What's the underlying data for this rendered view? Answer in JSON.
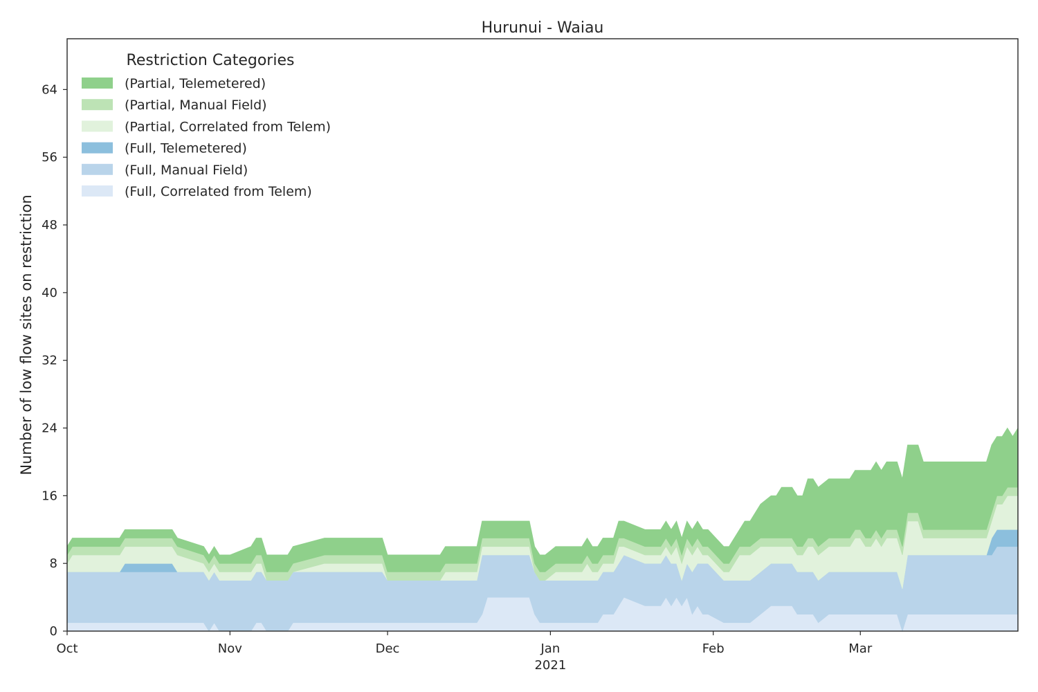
{
  "chart_data": {
    "type": "area",
    "stacked": true,
    "title": "Hurunui - Waiau",
    "ylabel": "Number of low flow sites on restriction",
    "xlabel": "",
    "x_range": [
      "2020-10-01",
      "2021-03-31"
    ],
    "ylim": [
      0,
      70
    ],
    "y_ticks": [
      0,
      8,
      16,
      24,
      32,
      40,
      48,
      56,
      64
    ],
    "x_ticks": [
      {
        "date": "2020-10-01",
        "label": "Oct",
        "sublabel": ""
      },
      {
        "date": "2020-11-01",
        "label": "Nov",
        "sublabel": ""
      },
      {
        "date": "2020-12-01",
        "label": "Dec",
        "sublabel": ""
      },
      {
        "date": "2021-01-01",
        "label": "Jan",
        "sublabel": "2021"
      },
      {
        "date": "2021-02-01",
        "label": "Feb",
        "sublabel": ""
      },
      {
        "date": "2021-03-01",
        "label": "Mar",
        "sublabel": ""
      }
    ],
    "grid": false,
    "legend": {
      "title": "Restriction Categories",
      "placement": "upper-left"
    },
    "dates": [
      "2020-10-01",
      "2020-10-02",
      "2020-10-11",
      "2020-10-12",
      "2020-10-21",
      "2020-10-22",
      "2020-10-27",
      "2020-10-28",
      "2020-10-29",
      "2020-10-30",
      "2020-11-01",
      "2020-11-05",
      "2020-11-06",
      "2020-11-07",
      "2020-11-08",
      "2020-11-09",
      "2020-11-10",
      "2020-11-12",
      "2020-11-13",
      "2020-11-19",
      "2020-11-20",
      "2020-11-21",
      "2020-11-22",
      "2020-11-24",
      "2020-11-25",
      "2020-11-29",
      "2020-11-30",
      "2020-12-01",
      "2020-12-04",
      "2020-12-05",
      "2020-12-06",
      "2020-12-07",
      "2020-12-08",
      "2020-12-09",
      "2020-12-10",
      "2020-12-11",
      "2020-12-12",
      "2020-12-13",
      "2020-12-14",
      "2020-12-15",
      "2020-12-16",
      "2020-12-17",
      "2020-12-18",
      "2020-12-19",
      "2020-12-20",
      "2020-12-21",
      "2020-12-22",
      "2020-12-24",
      "2020-12-25",
      "2020-12-26",
      "2020-12-27",
      "2020-12-28",
      "2020-12-29",
      "2020-12-30",
      "2020-12-31",
      "2021-01-02",
      "2021-01-04",
      "2021-01-05",
      "2021-01-06",
      "2021-01-07",
      "2021-01-08",
      "2021-01-09",
      "2021-01-10",
      "2021-01-11",
      "2021-01-12",
      "2021-01-13",
      "2021-01-14",
      "2021-01-15",
      "2021-01-19",
      "2021-01-20",
      "2021-01-21",
      "2021-01-22",
      "2021-01-23",
      "2021-01-24",
      "2021-01-25",
      "2021-01-26",
      "2021-01-27",
      "2021-01-28",
      "2021-01-29",
      "2021-01-30",
      "2021-01-31",
      "2021-02-03",
      "2021-02-04",
      "2021-02-05",
      "2021-02-06",
      "2021-02-07",
      "2021-02-08",
      "2021-02-10",
      "2021-02-12",
      "2021-02-13",
      "2021-02-14",
      "2021-02-15",
      "2021-02-16",
      "2021-02-17",
      "2021-02-18",
      "2021-02-19",
      "2021-02-20",
      "2021-02-21",
      "2021-02-23",
      "2021-02-24",
      "2021-02-25",
      "2021-02-26",
      "2021-02-27",
      "2021-02-28",
      "2021-03-01",
      "2021-03-02",
      "2021-03-03",
      "2021-03-04",
      "2021-03-05",
      "2021-03-06",
      "2021-03-07",
      "2021-03-08",
      "2021-03-09",
      "2021-03-10",
      "2021-03-11",
      "2021-03-12",
      "2021-03-13",
      "2021-03-14",
      "2021-03-15",
      "2021-03-16",
      "2021-03-17",
      "2021-03-18",
      "2021-03-19",
      "2021-03-20",
      "2021-03-22",
      "2021-03-23",
      "2021-03-24",
      "2021-03-25",
      "2021-03-26",
      "2021-03-27",
      "2021-03-28",
      "2021-03-29",
      "2021-03-30",
      "2021-03-31"
    ],
    "series": [
      {
        "name": "(Full, Correlated from Telem)",
        "color": "#dce8f6",
        "values": [
          1,
          1,
          1,
          1,
          1,
          1,
          1,
          0,
          1,
          0,
          0,
          0,
          1,
          1,
          0,
          0,
          0,
          0,
          1,
          1,
          1,
          1,
          1,
          1,
          1,
          1,
          1,
          1,
          1,
          1,
          1,
          1,
          1,
          1,
          1,
          1,
          1,
          1,
          1,
          1,
          1,
          1,
          1,
          2,
          4,
          4,
          4,
          4,
          4,
          4,
          4,
          4,
          2,
          1,
          1,
          1,
          1,
          1,
          1,
          1,
          1,
          1,
          1,
          2,
          2,
          2,
          3,
          4,
          3,
          3,
          3,
          3,
          4,
          3,
          4,
          3,
          4,
          2,
          3,
          2,
          2,
          1,
          1,
          1,
          1,
          1,
          1,
          2,
          3,
          3,
          3,
          3,
          3,
          2,
          2,
          2,
          2,
          1,
          2,
          2,
          2,
          2,
          2,
          2,
          2,
          2,
          2,
          2,
          2,
          2,
          2,
          2,
          0,
          2,
          2,
          2,
          2,
          2,
          2,
          2,
          2,
          2,
          2,
          2,
          2,
          2,
          2,
          2,
          2,
          2,
          2,
          2,
          2,
          2
        ]
      },
      {
        "name": "(Full, Manual Field)",
        "color": "#b9d4ea",
        "values": [
          6,
          6,
          6,
          6,
          6,
          6,
          6,
          6,
          6,
          6,
          6,
          6,
          6,
          6,
          6,
          6,
          6,
          6,
          6,
          6,
          6,
          6,
          6,
          6,
          6,
          6,
          6,
          5,
          5,
          5,
          5,
          5,
          5,
          5,
          5,
          5,
          5,
          5,
          5,
          5,
          5,
          5,
          5,
          7,
          5,
          5,
          5,
          5,
          5,
          5,
          5,
          5,
          5,
          5,
          5,
          5,
          5,
          5,
          5,
          5,
          5,
          5,
          5,
          5,
          5,
          5,
          5,
          5,
          5,
          5,
          5,
          5,
          5,
          5,
          4,
          3,
          4,
          5,
          5,
          6,
          6,
          5,
          5,
          5,
          5,
          5,
          5,
          5,
          5,
          5,
          5,
          5,
          5,
          5,
          5,
          5,
          5,
          5,
          5,
          5,
          5,
          5,
          5,
          5,
          5,
          5,
          5,
          5,
          5,
          5,
          5,
          5,
          5,
          7,
          7,
          7,
          7,
          7,
          7,
          7,
          7,
          7,
          7,
          7,
          7,
          7,
          7,
          7,
          7,
          8,
          8,
          8,
          8,
          8
        ]
      },
      {
        "name": "(Full, Telemetered)",
        "color": "#8cbfdd",
        "values": [
          0,
          0,
          0,
          1,
          1,
          0,
          0,
          0,
          0,
          0,
          0,
          0,
          0,
          0,
          0,
          0,
          0,
          0,
          0,
          0,
          0,
          0,
          0,
          0,
          0,
          0,
          0,
          0,
          0,
          0,
          0,
          0,
          0,
          0,
          0,
          0,
          0,
          0,
          0,
          0,
          0,
          0,
          0,
          0,
          0,
          0,
          0,
          0,
          0,
          0,
          0,
          0,
          0,
          0,
          0,
          0,
          0,
          0,
          0,
          0,
          0,
          0,
          0,
          0,
          0,
          0,
          0,
          0,
          0,
          0,
          0,
          0,
          0,
          0,
          0,
          0,
          0,
          0,
          0,
          0,
          0,
          0,
          0,
          0,
          0,
          0,
          0,
          0,
          0,
          0,
          0,
          0,
          0,
          0,
          0,
          0,
          0,
          0,
          0,
          0,
          0,
          0,
          0,
          0,
          0,
          0,
          0,
          0,
          0,
          0,
          0,
          0,
          0,
          0,
          0,
          0,
          0,
          0,
          0,
          0,
          0,
          0,
          0,
          0,
          0,
          0,
          0,
          0,
          2,
          2,
          2,
          2,
          2,
          2
        ]
      },
      {
        "name": "(Partial, Correlated from Telem)",
        "color": "#e1f2dc",
        "values": [
          1,
          2,
          2,
          2,
          2,
          2,
          1,
          1,
          1,
          1,
          1,
          1,
          1,
          1,
          0,
          0,
          0,
          0,
          0,
          1,
          1,
          1,
          1,
          1,
          1,
          1,
          1,
          0,
          0,
          0,
          0,
          0,
          0,
          0,
          0,
          0,
          1,
          1,
          1,
          1,
          1,
          1,
          1,
          1,
          1,
          1,
          1,
          1,
          1,
          1,
          1,
          1,
          0,
          0,
          0,
          1,
          1,
          1,
          1,
          1,
          2,
          1,
          1,
          1,
          1,
          1,
          2,
          1,
          1,
          1,
          1,
          1,
          1,
          1,
          2,
          2,
          2,
          2,
          2,
          1,
          1,
          1,
          1,
          2,
          3,
          3,
          3,
          3,
          2,
          2,
          2,
          2,
          2,
          2,
          2,
          3,
          3,
          3,
          3,
          3,
          3,
          3,
          3,
          4,
          4,
          3,
          3,
          4,
          3,
          4,
          4,
          4,
          4,
          4,
          4,
          4,
          2,
          2,
          2,
          2,
          2,
          2,
          2,
          2,
          2,
          2,
          2,
          2,
          2,
          3,
          3,
          4,
          4,
          4
        ]
      },
      {
        "name": "(Partial, Manual Field)",
        "color": "#bde3b5",
        "values": [
          1,
          1,
          1,
          1,
          1,
          1,
          1,
          1,
          1,
          1,
          1,
          1,
          1,
          1,
          1,
          1,
          1,
          1,
          1,
          1,
          1,
          1,
          1,
          1,
          1,
          1,
          1,
          1,
          1,
          1,
          1,
          1,
          1,
          1,
          1,
          1,
          1,
          1,
          1,
          1,
          1,
          1,
          1,
          1,
          1,
          1,
          1,
          1,
          1,
          1,
          1,
          1,
          1,
          1,
          1,
          1,
          1,
          1,
          1,
          1,
          1,
          1,
          1,
          1,
          1,
          1,
          1,
          1,
          1,
          1,
          1,
          1,
          1,
          1,
          1,
          1,
          1,
          1,
          1,
          1,
          1,
          1,
          1,
          1,
          1,
          1,
          1,
          1,
          1,
          1,
          1,
          1,
          1,
          1,
          1,
          1,
          1,
          1,
          1,
          1,
          1,
          1,
          1,
          1,
          1,
          1,
          1,
          1,
          1,
          1,
          1,
          1,
          1,
          1,
          1,
          1,
          1,
          1,
          1,
          1,
          1,
          1,
          1,
          1,
          1,
          1,
          1,
          1,
          1,
          1,
          1,
          1,
          1,
          1
        ]
      },
      {
        "name": "(Partial, Telemetered)",
        "color": "#8fd08b",
        "values": [
          1,
          1,
          1,
          1,
          1,
          1,
          1,
          1,
          1,
          1,
          1,
          2,
          2,
          2,
          2,
          2,
          2,
          2,
          2,
          2,
          2,
          2,
          2,
          2,
          2,
          2,
          2,
          2,
          2,
          2,
          2,
          2,
          2,
          2,
          2,
          2,
          2,
          2,
          2,
          2,
          2,
          2,
          2,
          2,
          2,
          2,
          2,
          2,
          2,
          2,
          2,
          2,
          2,
          2,
          2,
          2,
          2,
          2,
          2,
          2,
          2,
          2,
          2,
          2,
          2,
          2,
          2,
          2,
          2,
          2,
          2,
          2,
          2,
          2,
          2,
          2,
          2,
          2,
          2,
          2,
          2,
          2,
          2,
          2,
          2,
          3,
          3,
          4,
          5,
          5,
          6,
          6,
          6,
          6,
          6,
          7,
          7,
          7,
          7,
          7,
          7,
          7,
          7,
          7,
          7,
          8,
          8,
          8,
          8,
          8,
          8,
          8,
          8,
          8,
          8,
          8,
          8,
          8,
          8,
          8,
          8,
          8,
          8,
          8,
          8,
          8,
          8,
          8,
          8,
          7,
          7,
          7,
          6,
          7
        ]
      }
    ]
  }
}
